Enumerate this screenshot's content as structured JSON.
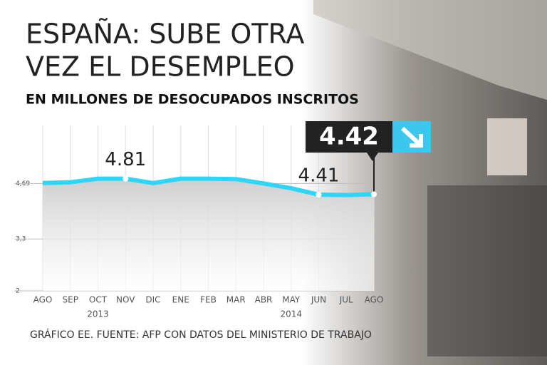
{
  "chart_data": {
    "type": "line",
    "title_lines": [
      "ESPAÑA: SUBE OTRA",
      "VEZ EL DESEMPLEO"
    ],
    "subtitle": "EN MILLONES DE DESOCUPADOS INSCRITOS",
    "source": "GRÁFICO EE. FUENTE: AFP CON DATOS DEL MINISTERIO DE TRABAJO",
    "categories": [
      "AGO",
      "SEP",
      "OCT",
      "NOV",
      "DIC",
      "ENE",
      "FEB",
      "MAR",
      "ABR",
      "MAY",
      "JUN",
      "JUL",
      "AGO"
    ],
    "year_labels": [
      "2013",
      "2014"
    ],
    "series": [
      {
        "name": "Desocupados inscritos",
        "color": "#30d4f4",
        "values": [
          4.7,
          4.72,
          4.81,
          4.81,
          4.7,
          4.81,
          4.81,
          4.8,
          4.69,
          4.57,
          4.41,
          4.4,
          4.42
        ],
        "value_labels": [
          null,
          null,
          null,
          "4.81",
          null,
          null,
          null,
          null,
          null,
          null,
          "4.41",
          null,
          "4.42"
        ]
      }
    ],
    "ylim": [
      2,
      6
    ],
    "yticks": [
      2,
      {
        "value": 3.3,
        "label": "3,3"
      },
      {
        "value": 4.69,
        "label": "4,69"
      }
    ],
    "grid": true
  }
}
